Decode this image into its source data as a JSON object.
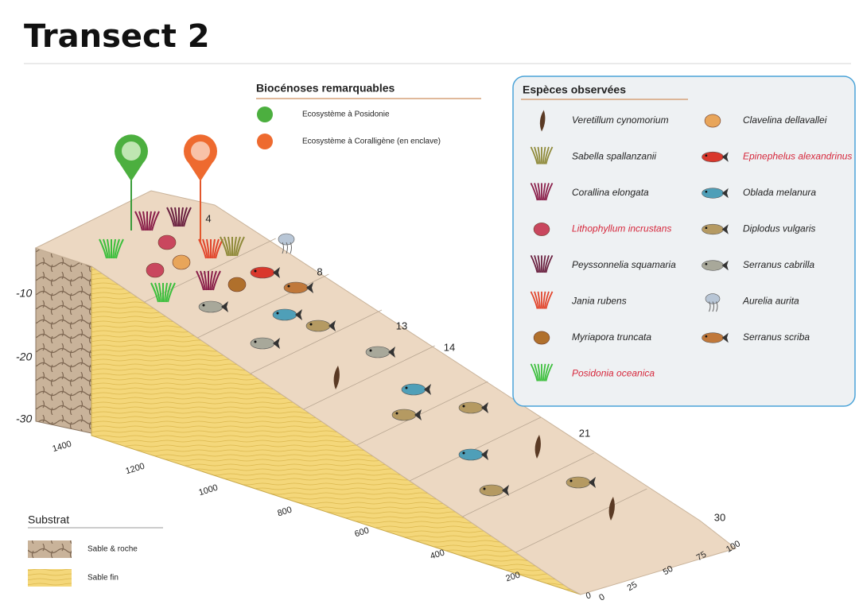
{
  "title": "Transect 2",
  "biocenoses": {
    "title": "Biocénoses remarquables",
    "items": [
      "Ecosystème à Posidonie",
      "Ecosystème à Coralligène (en enclave)"
    ]
  },
  "especes": {
    "title": "Espèces observées",
    "items": [
      {
        "name": "Veretillum cynomorium",
        "color": "#222222"
      },
      {
        "name": "Sabella spallanzanii",
        "color": "#222222"
      },
      {
        "name": "Corallina elongata",
        "color": "#222222"
      },
      {
        "name": "Lithophyllum incrustans",
        "color": "#d6283c"
      },
      {
        "name": "Peyssonnelia squamaria",
        "color": "#222222"
      },
      {
        "name": "Jania rubens",
        "color": "#222222"
      },
      {
        "name": "Myriapora truncata",
        "color": "#222222"
      },
      {
        "name": "Posidonia oceanica",
        "color": "#d6283c"
      },
      {
        "name": "Clavelina dellavallei",
        "color": "#222222"
      },
      {
        "name": "Epinephelus alexandrinus",
        "color": "#d6283c"
      },
      {
        "name": "Oblada melanura",
        "color": "#222222"
      },
      {
        "name": "Diplodus vulgaris",
        "color": "#222222"
      },
      {
        "name": "Serranus cabrilla",
        "color": "#222222"
      },
      {
        "name": "Aurelia aurita",
        "color": "#222222"
      },
      {
        "name": "Serranus scriba",
        "color": "#222222"
      }
    ]
  },
  "depths": [
    "-10",
    "-20",
    "-30"
  ],
  "distances": [
    "1400",
    "1200",
    "1000",
    "800",
    "600",
    "400",
    "200",
    "0"
  ],
  "widths": [
    "0",
    "25",
    "50",
    "75",
    "100"
  ],
  "markers": [
    "4",
    "8",
    "13",
    "14",
    "21",
    "30"
  ],
  "substrat": {
    "title": "Substrat",
    "items": [
      "Sable & roche",
      "Sable fin"
    ]
  }
}
